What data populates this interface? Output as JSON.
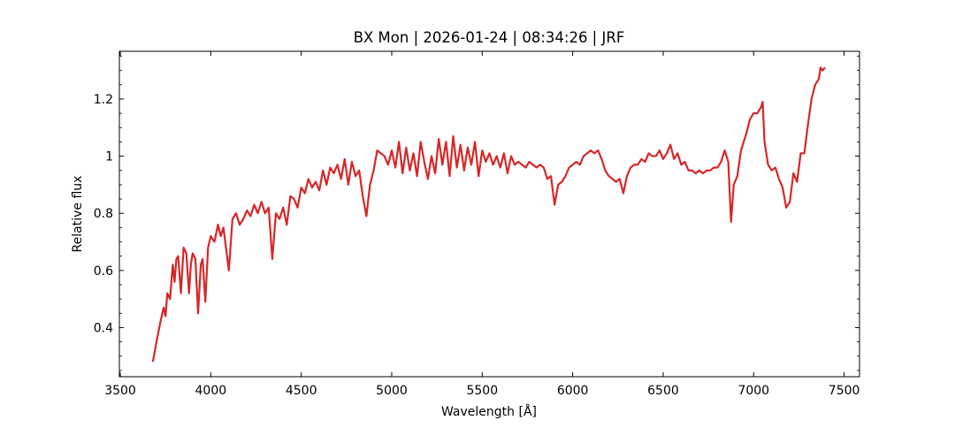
{
  "chart_data": {
    "type": "line",
    "title": "BX Mon | 2026-01-24 | 08:34:26 | JRF",
    "xlabel": "Wavelength [Å]",
    "ylabel": "Relative flux",
    "color": "#d62728",
    "x": [
      3680,
      3700,
      3725,
      3740,
      3750,
      3760,
      3775,
      3790,
      3800,
      3810,
      3820,
      3835,
      3850,
      3865,
      3880,
      3890,
      3900,
      3915,
      3930,
      3945,
      3955,
      3970,
      3985,
      4000,
      4020,
      4040,
      4055,
      4070,
      4100,
      4120,
      4140,
      4160,
      4180,
      4200,
      4220,
      4240,
      4260,
      4280,
      4300,
      4320,
      4340,
      4360,
      4380,
      4400,
      4420,
      4440,
      4460,
      4480,
      4500,
      4520,
      4540,
      4560,
      4580,
      4600,
      4620,
      4640,
      4660,
      4680,
      4700,
      4720,
      4740,
      4760,
      4780,
      4800,
      4820,
      4840,
      4860,
      4880,
      4900,
      4920,
      4940,
      4960,
      4980,
      5000,
      5020,
      5040,
      5060,
      5080,
      5100,
      5120,
      5140,
      5160,
      5180,
      5200,
      5220,
      5240,
      5260,
      5280,
      5300,
      5320,
      5340,
      5360,
      5380,
      5400,
      5420,
      5440,
      5460,
      5480,
      5500,
      5520,
      5540,
      5560,
      5580,
      5600,
      5620,
      5640,
      5660,
      5680,
      5700,
      5720,
      5740,
      5760,
      5780,
      5800,
      5820,
      5840,
      5860,
      5880,
      5900,
      5920,
      5940,
      5960,
      5980,
      6000,
      6020,
      6040,
      6060,
      6080,
      6100,
      6120,
      6140,
      6160,
      6180,
      6200,
      6220,
      6240,
      6260,
      6280,
      6300,
      6320,
      6340,
      6360,
      6380,
      6400,
      6420,
      6440,
      6460,
      6480,
      6500,
      6520,
      6540,
      6560,
      6580,
      6600,
      6620,
      6640,
      6660,
      6680,
      6700,
      6720,
      6740,
      6760,
      6780,
      6800,
      6820,
      6840,
      6860,
      6875,
      6890,
      6910,
      6930,
      6960,
      6980,
      7000,
      7020,
      7040,
      7050,
      7060,
      7080,
      7100,
      7120,
      7140,
      7160,
      7180,
      7200,
      7220,
      7240,
      7260,
      7280,
      7300,
      7320,
      7340,
      7360,
      7370,
      7380,
      7395
    ],
    "values": [
      0.28,
      0.35,
      0.43,
      0.47,
      0.44,
      0.52,
      0.5,
      0.62,
      0.56,
      0.64,
      0.65,
      0.52,
      0.68,
      0.66,
      0.52,
      0.62,
      0.66,
      0.64,
      0.45,
      0.62,
      0.64,
      0.49,
      0.68,
      0.72,
      0.7,
      0.76,
      0.72,
      0.75,
      0.6,
      0.78,
      0.8,
      0.76,
      0.78,
      0.81,
      0.79,
      0.83,
      0.8,
      0.84,
      0.8,
      0.82,
      0.64,
      0.8,
      0.78,
      0.82,
      0.76,
      0.86,
      0.85,
      0.82,
      0.89,
      0.87,
      0.92,
      0.89,
      0.91,
      0.88,
      0.95,
      0.9,
      0.96,
      0.94,
      0.97,
      0.92,
      0.99,
      0.9,
      0.98,
      0.93,
      0.95,
      0.86,
      0.79,
      0.9,
      0.95,
      1.02,
      1.01,
      1.0,
      0.97,
      1.02,
      0.96,
      1.05,
      0.94,
      1.03,
      0.95,
      1.01,
      0.93,
      1.05,
      0.98,
      0.92,
      1.0,
      0.94,
      1.06,
      0.97,
      1.05,
      0.93,
      1.07,
      0.96,
      1.04,
      0.95,
      1.03,
      0.97,
      1.05,
      0.93,
      1.02,
      0.98,
      1.01,
      0.97,
      1.0,
      0.96,
      1.01,
      0.94,
      1.0,
      0.97,
      0.98,
      0.97,
      0.96,
      0.98,
      0.97,
      0.96,
      0.97,
      0.96,
      0.92,
      0.93,
      0.83,
      0.9,
      0.91,
      0.93,
      0.96,
      0.97,
      0.98,
      0.97,
      1.0,
      1.01,
      1.02,
      1.01,
      1.02,
      0.99,
      0.95,
      0.93,
      0.92,
      0.91,
      0.92,
      0.87,
      0.93,
      0.96,
      0.97,
      0.97,
      0.99,
      0.98,
      1.01,
      1.0,
      1.0,
      1.02,
      0.99,
      1.01,
      1.04,
      0.99,
      1.01,
      0.97,
      0.98,
      0.95,
      0.95,
      0.94,
      0.95,
      0.94,
      0.95,
      0.95,
      0.96,
      0.96,
      0.98,
      1.02,
      0.98,
      0.77,
      0.9,
      0.93,
      1.02,
      1.08,
      1.13,
      1.15,
      1.15,
      1.17,
      1.19,
      1.05,
      0.97,
      0.95,
      0.96,
      0.92,
      0.89,
      0.82,
      0.84,
      0.94,
      0.91,
      1.01,
      1.01,
      1.11,
      1.2,
      1.25,
      1.27,
      1.31,
      1.3,
      1.31
    ],
    "xlim": [
      3495,
      7585
    ],
    "ylim": [
      0.228,
      1.367
    ],
    "xticks": [
      3500,
      4000,
      4500,
      5000,
      5500,
      6000,
      6500,
      7000,
      7500
    ],
    "yticks": [
      0.4,
      0.6,
      0.8,
      1.0,
      1.2
    ],
    "yminorticks": [
      0.25,
      0.3,
      0.35,
      0.45,
      0.5,
      0.55,
      0.65,
      0.7,
      0.75,
      0.85,
      0.9,
      0.95,
      1.05,
      1.1,
      1.15,
      1.25,
      1.3,
      1.35
    ],
    "grid": false
  }
}
